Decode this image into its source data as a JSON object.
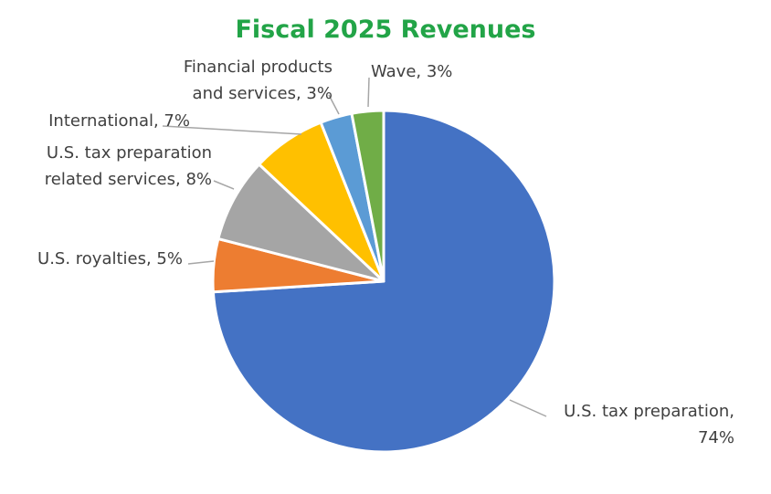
{
  "chart_data": {
    "type": "pie",
    "title": "Fiscal 2025 Revenues",
    "categories": [
      "U.S. tax preparation",
      "U.S. royalties",
      "U.S. tax preparation related services",
      "International",
      "Financial products and services",
      "Wave"
    ],
    "values": [
      74,
      5,
      8,
      7,
      3,
      3
    ],
    "unit": "%",
    "start_angle": "12 o'clock",
    "direction": "clockwise",
    "legend": "none",
    "labels": [
      {
        "category": "U.S. tax preparation",
        "lines": [
          "U.S. tax preparation,",
          "74%"
        ],
        "color": "#4472c4"
      },
      {
        "category": "U.S. royalties",
        "lines": [
          "U.S. royalties, 5%"
        ],
        "color": "#ed7d31"
      },
      {
        "category": "U.S. tax preparation related services",
        "lines": [
          "U.S. tax preparation",
          "related services, 8%"
        ],
        "color": "#a5a5a5"
      },
      {
        "category": "International",
        "lines": [
          "International, 7%"
        ],
        "color": "#ffc000"
      },
      {
        "category": "Financial products and services",
        "lines": [
          "Financial products",
          "and services, 3%"
        ],
        "color": "#5b9bd5"
      },
      {
        "category": "Wave",
        "lines": [
          "Wave, 3%"
        ],
        "color": "#70ad47"
      }
    ]
  }
}
